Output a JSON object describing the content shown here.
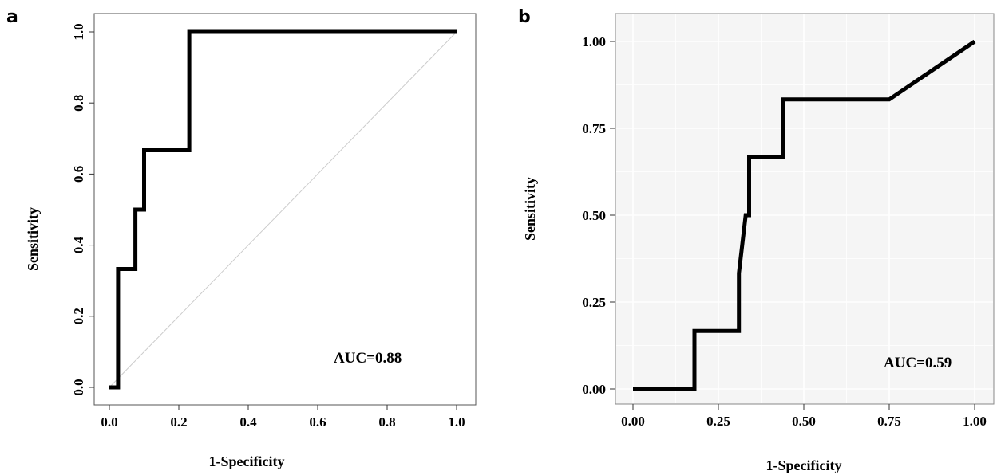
{
  "chart_data": [
    {
      "panel": "a",
      "type": "line",
      "xlabel": "1-Specificity",
      "ylabel": "Sensitivity",
      "xlim": [
        0,
        1
      ],
      "ylim": [
        0,
        1
      ],
      "x_ticks": [
        "0.0",
        "0.2",
        "0.4",
        "0.6",
        "0.8",
        "1.0"
      ],
      "y_ticks": [
        "0.0",
        "0.2",
        "0.4",
        "0.6",
        "0.8",
        "1.0"
      ],
      "annotation": "AUC=0.88",
      "grid": false,
      "legend": "none",
      "diagonal_reference": true,
      "series": [
        {
          "x": [
            0.0,
            0.025,
            0.025,
            0.075,
            0.075,
            0.1,
            0.1,
            0.23,
            0.23,
            1.0
          ],
          "y": [
            0.0,
            0.0,
            0.333,
            0.333,
            0.5,
            0.5,
            0.667,
            0.667,
            1.0,
            1.0
          ]
        }
      ]
    },
    {
      "panel": "b",
      "type": "line",
      "xlabel": "1-Specificity",
      "ylabel": "Sensitivity",
      "xlim": [
        0,
        1
      ],
      "ylim": [
        0,
        1
      ],
      "x_ticks": [
        "0.00",
        "0.25",
        "0.50",
        "0.75",
        "1.00"
      ],
      "y_ticks": [
        "0.00",
        "0.25",
        "0.50",
        "0.75",
        "1.00"
      ],
      "annotation": "AUC=0.59",
      "grid": true,
      "legend": "none",
      "series": [
        {
          "x": [
            0.0,
            0.18,
            0.18,
            0.31,
            0.31,
            0.33,
            0.34,
            0.34,
            0.44,
            0.44,
            0.75,
            1.0
          ],
          "y": [
            0.0,
            0.0,
            0.167,
            0.167,
            0.333,
            0.5,
            0.5,
            0.667,
            0.667,
            0.833,
            0.833,
            1.0
          ]
        }
      ]
    }
  ]
}
